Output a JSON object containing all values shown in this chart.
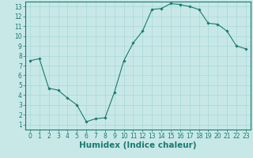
{
  "x": [
    0,
    1,
    2,
    3,
    4,
    5,
    6,
    7,
    8,
    9,
    10,
    11,
    12,
    13,
    14,
    15,
    16,
    17,
    18,
    19,
    20,
    21,
    22,
    23
  ],
  "y": [
    7.5,
    7.7,
    4.7,
    4.5,
    3.7,
    3.0,
    1.3,
    1.6,
    1.7,
    4.3,
    7.5,
    9.3,
    10.5,
    12.7,
    12.8,
    13.3,
    13.2,
    13.0,
    12.7,
    11.3,
    11.2,
    10.5,
    9.0,
    8.7
  ],
  "xlim": [
    -0.5,
    23.5
  ],
  "ylim": [
    0.5,
    13.5
  ],
  "xticks": [
    0,
    1,
    2,
    3,
    4,
    5,
    6,
    7,
    8,
    9,
    10,
    11,
    12,
    13,
    14,
    15,
    16,
    17,
    18,
    19,
    20,
    21,
    22,
    23
  ],
  "yticks": [
    1,
    2,
    3,
    4,
    5,
    6,
    7,
    8,
    9,
    10,
    11,
    12,
    13
  ],
  "xlabel": "Humidex (Indice chaleur)",
  "line_color": "#1a7a6e",
  "marker_color": "#1a7a6e",
  "bg_color": "#c8e8e8",
  "grid_color": "#a8d8d8",
  "tick_label_fontsize": 5.5,
  "xlabel_fontsize": 7.5,
  "title": ""
}
